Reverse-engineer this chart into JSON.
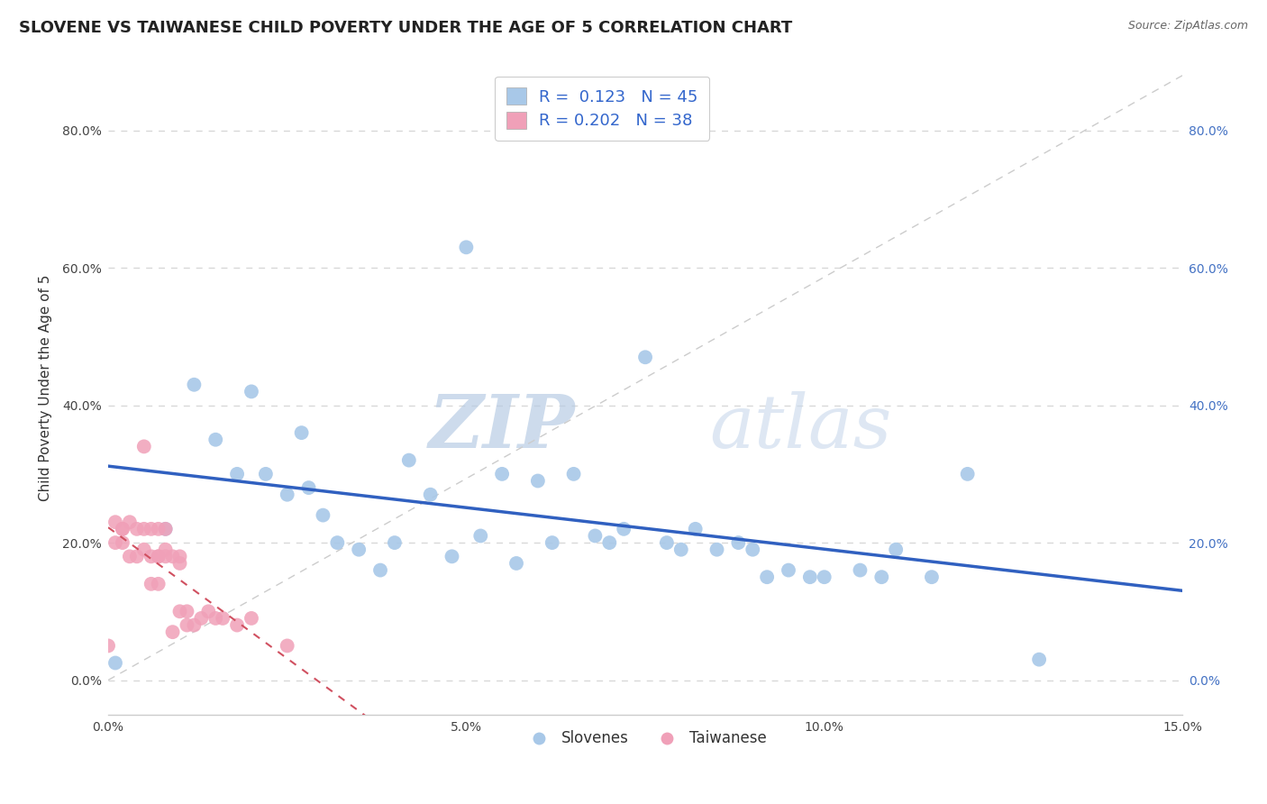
{
  "title": "SLOVENE VS TAIWANESE CHILD POVERTY UNDER THE AGE OF 5 CORRELATION CHART",
  "source": "Source: ZipAtlas.com",
  "xlabel": "",
  "ylabel": "Child Poverty Under the Age of 5",
  "xlim": [
    0.0,
    0.15
  ],
  "ylim": [
    -0.05,
    0.9
  ],
  "xticks": [
    0.0,
    0.05,
    0.1,
    0.15
  ],
  "xticklabels": [
    "0.0%",
    "5.0%",
    "10.0%",
    "15.0%"
  ],
  "yticks": [
    0.0,
    0.2,
    0.4,
    0.6,
    0.8
  ],
  "yticklabels": [
    "0.0%",
    "20.0%",
    "40.0%",
    "60.0%",
    "80.0%"
  ],
  "slovene_color": "#a8c8e8",
  "taiwanese_color": "#f0a0b8",
  "slovene_line_color": "#3060c0",
  "taiwanese_line_color": "#d05060",
  "R_slovene": 0.123,
  "N_slovene": 45,
  "R_taiwanese": 0.202,
  "N_taiwanese": 38,
  "slovene_x": [
    0.001,
    0.008,
    0.012,
    0.015,
    0.018,
    0.02,
    0.022,
    0.025,
    0.027,
    0.028,
    0.03,
    0.032,
    0.035,
    0.038,
    0.04,
    0.042,
    0.045,
    0.048,
    0.05,
    0.052,
    0.055,
    0.057,
    0.06,
    0.062,
    0.065,
    0.068,
    0.07,
    0.072,
    0.075,
    0.078,
    0.08,
    0.082,
    0.085,
    0.088,
    0.09,
    0.092,
    0.095,
    0.098,
    0.1,
    0.105,
    0.108,
    0.11,
    0.115,
    0.12,
    0.13
  ],
  "slovene_y": [
    0.025,
    0.22,
    0.43,
    0.35,
    0.3,
    0.42,
    0.3,
    0.27,
    0.36,
    0.28,
    0.24,
    0.2,
    0.19,
    0.16,
    0.2,
    0.32,
    0.27,
    0.18,
    0.63,
    0.21,
    0.3,
    0.17,
    0.29,
    0.2,
    0.3,
    0.21,
    0.2,
    0.22,
    0.47,
    0.2,
    0.19,
    0.22,
    0.19,
    0.2,
    0.19,
    0.15,
    0.16,
    0.15,
    0.15,
    0.16,
    0.15,
    0.19,
    0.15,
    0.3,
    0.03
  ],
  "taiwanese_x": [
    0.0,
    0.001,
    0.001,
    0.002,
    0.002,
    0.002,
    0.003,
    0.003,
    0.004,
    0.004,
    0.005,
    0.005,
    0.005,
    0.006,
    0.006,
    0.006,
    0.007,
    0.007,
    0.007,
    0.007,
    0.008,
    0.008,
    0.008,
    0.009,
    0.009,
    0.01,
    0.01,
    0.01,
    0.011,
    0.011,
    0.012,
    0.013,
    0.014,
    0.015,
    0.016,
    0.018,
    0.02,
    0.025
  ],
  "taiwanese_y": [
    0.05,
    0.23,
    0.2,
    0.22,
    0.22,
    0.2,
    0.23,
    0.18,
    0.18,
    0.22,
    0.34,
    0.19,
    0.22,
    0.18,
    0.22,
    0.14,
    0.18,
    0.18,
    0.22,
    0.14,
    0.19,
    0.18,
    0.22,
    0.07,
    0.18,
    0.17,
    0.1,
    0.18,
    0.1,
    0.08,
    0.08,
    0.09,
    0.1,
    0.09,
    0.09,
    0.08,
    0.09,
    0.05
  ],
  "watermark_zip": "ZIP",
  "watermark_atlas": "atlas",
  "background_color": "#ffffff",
  "grid_color": "#d8d8d8",
  "title_fontsize": 13,
  "axis_label_fontsize": 11,
  "tick_fontsize": 10,
  "legend_fontsize": 13
}
